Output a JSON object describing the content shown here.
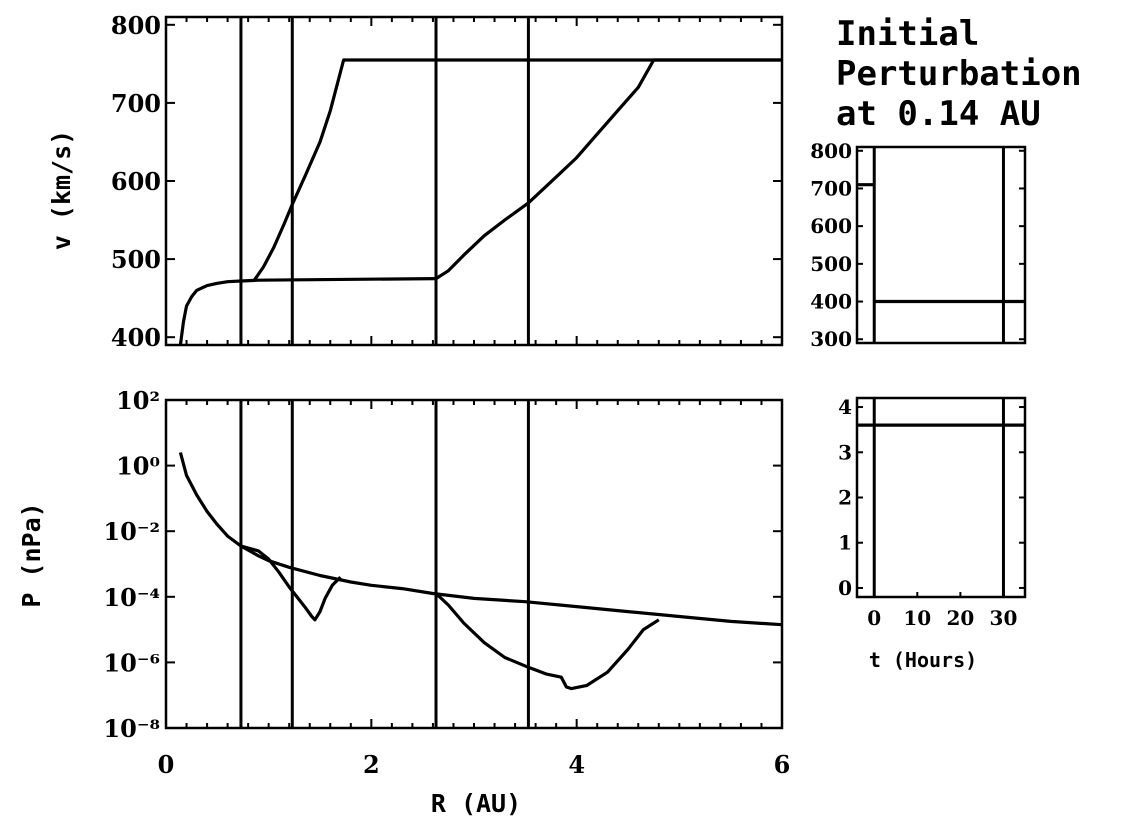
{
  "annotation": [
    "Initial",
    "Perturbation",
    "at 0.14 AU"
  ],
  "chart_data": [
    {
      "id": "velocity",
      "type": "line",
      "xlabel": "",
      "ylabel": "v (km/s)",
      "xlim": [
        0,
        6
      ],
      "ylim": [
        390,
        810
      ],
      "yticks": [
        400,
        500,
        600,
        700,
        800
      ],
      "vlines": [
        0.73,
        1.23,
        2.63,
        3.53
      ],
      "series": [
        {
          "x": [
            0.14,
            0.17,
            0.2,
            0.25,
            0.3,
            0.4,
            0.5,
            0.6,
            0.73,
            0.9,
            2.63
          ],
          "y": [
            390,
            420,
            440,
            452,
            460,
            466,
            469,
            471,
            472,
            473,
            475
          ]
        },
        {
          "x": [
            0.86,
            0.95,
            1.05,
            1.15,
            1.23,
            1.35,
            1.5,
            1.6,
            1.68,
            1.73,
            6.0
          ],
          "y": [
            473,
            490,
            515,
            545,
            570,
            605,
            650,
            690,
            730,
            755,
            755
          ]
        },
        {
          "x": [
            2.63,
            2.75,
            2.9,
            3.1,
            3.3,
            3.53,
            3.8,
            4.0,
            4.2,
            4.4,
            4.6,
            4.75,
            6.0
          ],
          "y": [
            475,
            485,
            505,
            530,
            550,
            572,
            605,
            630,
            660,
            690,
            720,
            755,
            755
          ]
        }
      ]
    },
    {
      "id": "pressure",
      "type": "line",
      "xlabel": "R (AU)",
      "ylabel": "P (nPa)",
      "xlim": [
        0,
        6
      ],
      "xticks": [
        0,
        2,
        4,
        6
      ],
      "xtick_labels": [
        "0",
        "2",
        "4",
        "6"
      ],
      "ylim_log10": [
        -8,
        2
      ],
      "ytick_exponents": [
        2,
        0,
        -2,
        -4,
        -6,
        -8
      ],
      "ytick_labels": [
        "10²",
        "10⁰",
        "10⁻²",
        "10⁻⁴",
        "10⁻⁶",
        "10⁻⁸"
      ],
      "vlines": [
        0.73,
        1.23,
        2.63,
        3.53
      ],
      "series": [
        {
          "x": [
            0.14,
            0.2,
            0.3,
            0.4,
            0.5,
            0.6,
            0.73,
            0.9,
            1.0,
            1.2,
            1.5,
            1.8,
            2.0,
            2.3,
            2.6,
            3.0,
            3.5,
            4.0,
            4.5,
            5.0,
            5.5,
            6.0
          ],
          "log10y": [
            0.4,
            -0.3,
            -0.9,
            -1.4,
            -1.8,
            -2.15,
            -2.45,
            -2.75,
            -2.9,
            -3.1,
            -3.35,
            -3.55,
            -3.65,
            -3.75,
            -3.9,
            -4.05,
            -4.15,
            -4.3,
            -4.45,
            -4.6,
            -4.75,
            -4.85
          ]
        },
        {
          "x": [
            0.73,
            0.9,
            1.0,
            1.1,
            1.2,
            1.3,
            1.35,
            1.42,
            1.45,
            1.5,
            1.55,
            1.62,
            1.7
          ],
          "log10y": [
            -2.45,
            -2.6,
            -2.85,
            -3.25,
            -3.7,
            -4.1,
            -4.3,
            -4.6,
            -4.7,
            -4.45,
            -4.05,
            -3.65,
            -3.4
          ]
        },
        {
          "x": [
            2.63,
            2.75,
            2.9,
            3.1,
            3.3,
            3.53,
            3.7,
            3.85,
            3.9,
            3.95,
            4.1,
            4.3,
            4.5,
            4.65,
            4.8
          ],
          "log10y": [
            -3.9,
            -4.25,
            -4.8,
            -5.4,
            -5.85,
            -6.15,
            -6.35,
            -6.45,
            -6.75,
            -6.8,
            -6.7,
            -6.3,
            -5.6,
            -5.0,
            -4.7
          ]
        }
      ]
    },
    {
      "id": "inset-velocity",
      "type": "line",
      "ylim": [
        290,
        810
      ],
      "yticks": [
        300,
        400,
        500,
        600,
        700,
        800
      ],
      "xlim": [
        -4,
        35
      ],
      "vlines": [
        0,
        30
      ],
      "series": [
        {
          "x": [
            -4,
            0
          ],
          "y": [
            710,
            710
          ]
        },
        {
          "x": [
            0,
            35
          ],
          "y": [
            400,
            400
          ]
        }
      ]
    },
    {
      "id": "inset-lower",
      "type": "line",
      "xlabel": "t (Hours)",
      "xlim": [
        -4,
        35
      ],
      "xticks": [
        0,
        10,
        20,
        30
      ],
      "ylim": [
        -0.2,
        4.2
      ],
      "yticks": [
        0,
        1,
        2,
        3,
        4
      ],
      "vlines": [
        0,
        30
      ],
      "series": [
        {
          "x": [
            -4,
            35
          ],
          "y": [
            3.6,
            3.6
          ]
        }
      ]
    }
  ]
}
